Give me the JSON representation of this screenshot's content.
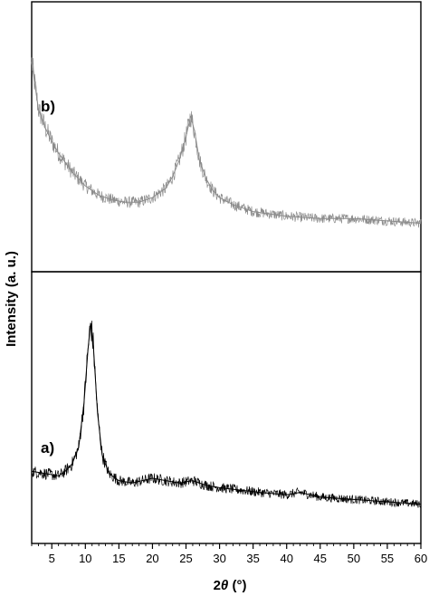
{
  "chart_data": {
    "type": "line",
    "xlabel_prefix": "2",
    "xlabel_var": "θ",
    "xlabel_suffix": " (°)",
    "ylabel": "Intensity (a. u.)",
    "xlim": [
      2,
      60
    ],
    "xticks": [
      5,
      10,
      15,
      20,
      25,
      30,
      35,
      40,
      45,
      50,
      55,
      60
    ],
    "grid": false,
    "y_tick_labels_shown": false,
    "panels": [
      {
        "label": "b)",
        "position": "top",
        "color": "#8c8c8c",
        "ylim": [
          0,
          100
        ],
        "x": [
          2,
          3,
          4,
          5,
          6,
          8,
          10,
          12,
          14,
          16,
          18,
          20,
          22,
          23,
          24,
          25,
          25.7,
          26.3,
          27,
          28,
          29,
          30,
          32,
          35,
          40,
          45,
          50,
          55,
          60
        ],
        "values": [
          82,
          62,
          54,
          48,
          43,
          35,
          29,
          25,
          23,
          22,
          22,
          24,
          28,
          33,
          40,
          50,
          59,
          52,
          40,
          32,
          27,
          24,
          21,
          18,
          16,
          15,
          15,
          14,
          13
        ]
      },
      {
        "label": "a)",
        "position": "bottom",
        "color": "#000000",
        "ylim": [
          0,
          100
        ],
        "x": [
          2,
          4,
          6,
          7,
          8,
          9,
          9.8,
          10.4,
          10.8,
          11.2,
          11.8,
          12.5,
          13.5,
          15,
          17,
          20,
          22,
          24,
          26,
          28,
          30,
          33,
          36,
          40,
          42,
          45,
          50,
          55,
          60
        ],
        "values": [
          23,
          22,
          21,
          23,
          26,
          33,
          52,
          75,
          86,
          76,
          48,
          30,
          22,
          19,
          18,
          20,
          19,
          18,
          19,
          17,
          16,
          15,
          14,
          13,
          14,
          12,
          11,
          10,
          9
        ]
      }
    ]
  }
}
